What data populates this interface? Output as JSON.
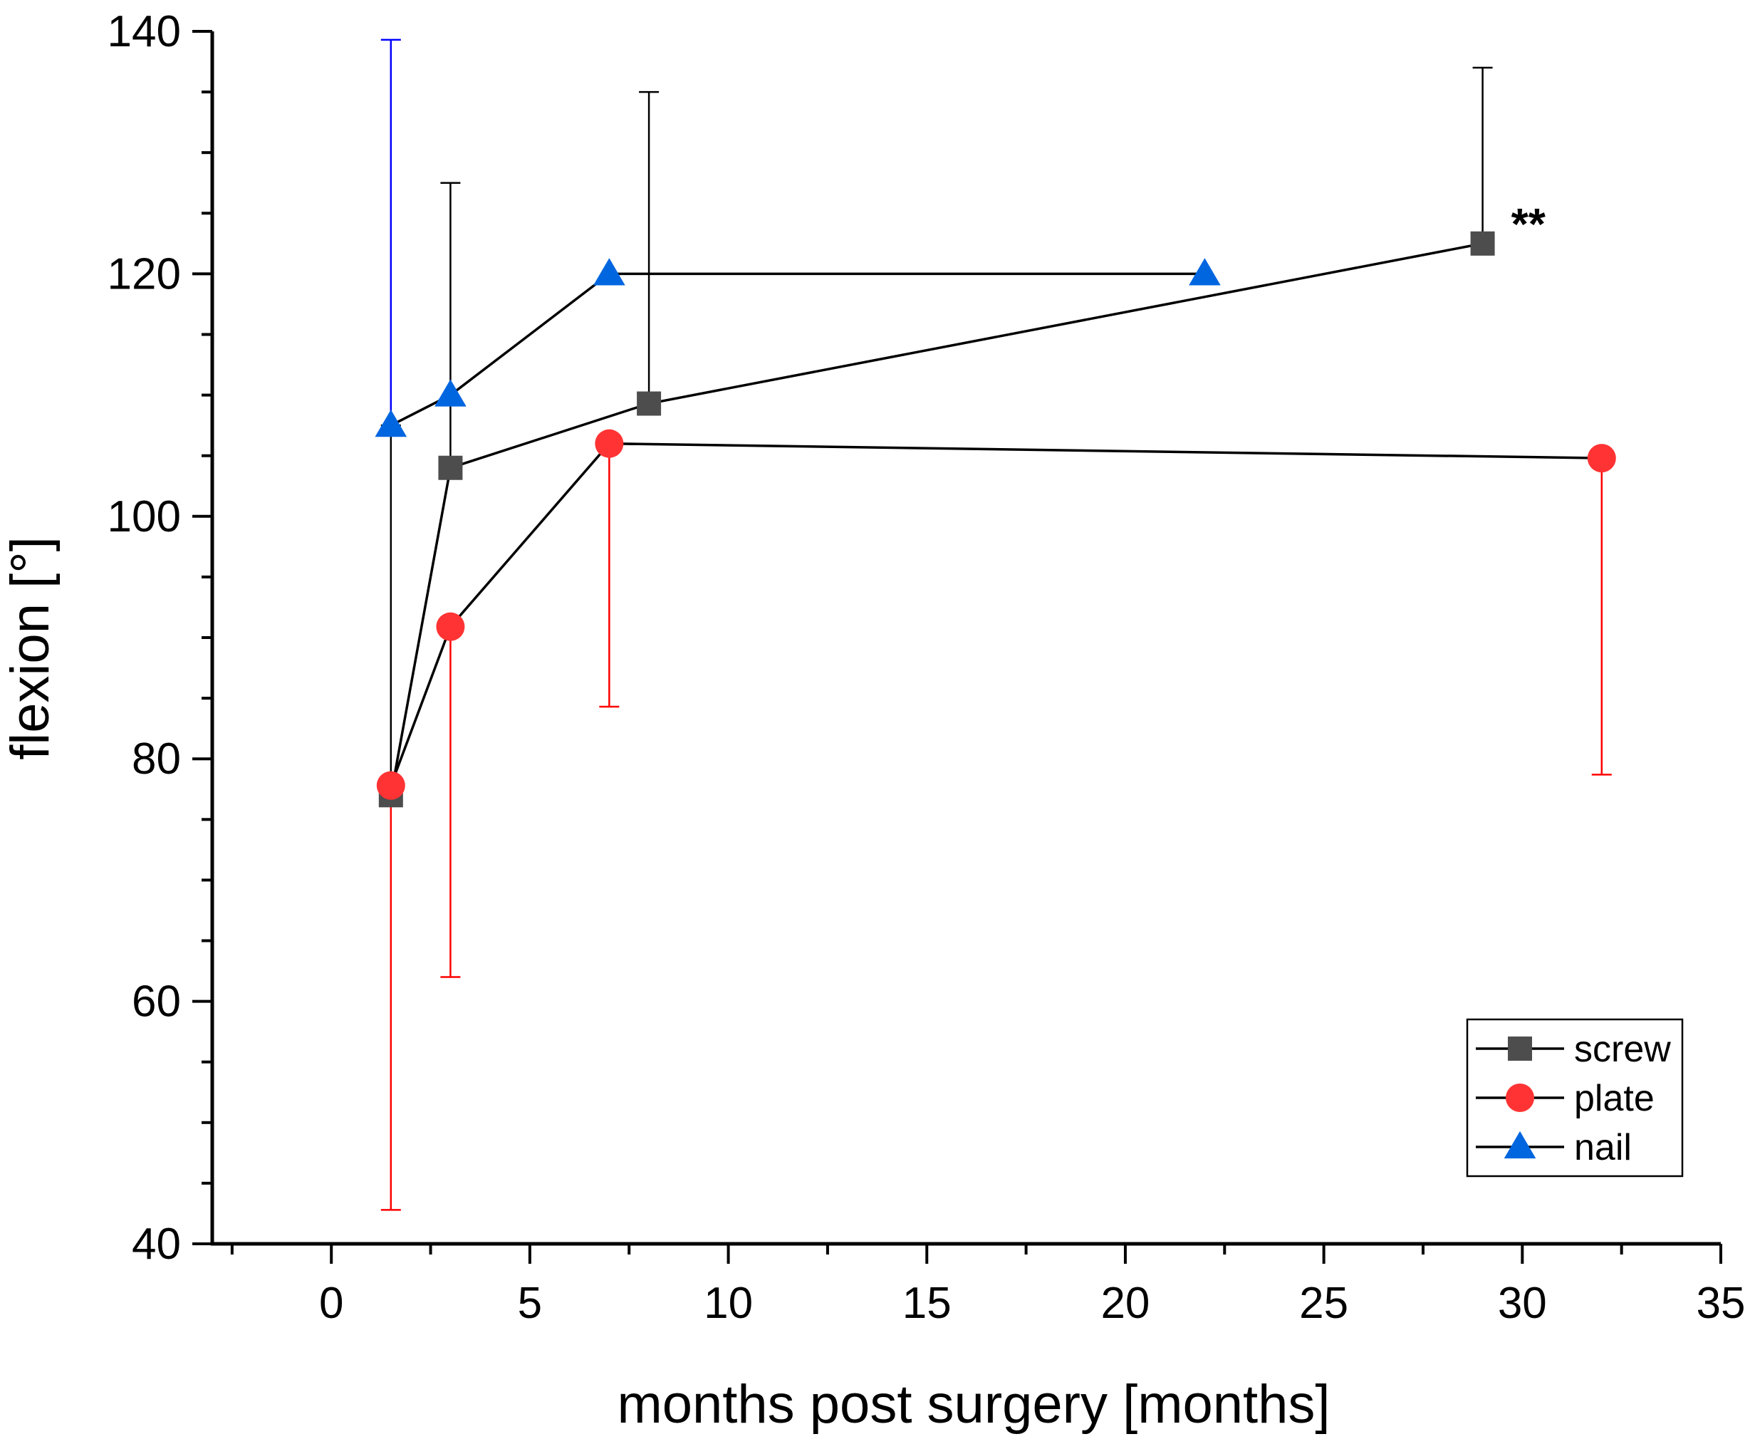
{
  "chart_data": {
    "type": "line",
    "title": "",
    "xlabel": "months post surgery [months]",
    "ylabel": "flexion [°]",
    "xlim": [
      -3,
      35
    ],
    "ylim": [
      40,
      140
    ],
    "xticks": [
      0,
      5,
      10,
      15,
      20,
      25,
      30,
      35
    ],
    "yticks": [
      40,
      60,
      80,
      100,
      120,
      140
    ],
    "x_minor_step": 2.5,
    "y_minor_step": 5,
    "grid": false,
    "legend_position": "bottom-right",
    "series": [
      {
        "name": "screw",
        "marker": "square",
        "color": "#4d4d4d",
        "errorbar_color": "#000000",
        "line_color": "#000000",
        "points": [
          {
            "x": 1.5,
            "y": 77,
            "err_high": 107.5
          },
          {
            "x": 3,
            "y": 104,
            "err_high": 127.5
          },
          {
            "x": 8,
            "y": 109.3,
            "err_high": 135
          },
          {
            "x": 29,
            "y": 122.5,
            "err_high": 137
          }
        ]
      },
      {
        "name": "plate",
        "marker": "circle",
        "color": "#ff3333",
        "errorbar_color": "#ff0000",
        "line_color": "#000000",
        "points": [
          {
            "x": 1.5,
            "y": 77.8,
            "err_low": 42.8
          },
          {
            "x": 3,
            "y": 90.9,
            "err_low": 62
          },
          {
            "x": 7,
            "y": 106,
            "err_low": 84.3
          },
          {
            "x": 32,
            "y": 104.8,
            "err_low": 78.7
          }
        ]
      },
      {
        "name": "nail",
        "marker": "triangle",
        "color": "#0066e0",
        "errorbar_color": "#0000ff",
        "line_color": "#000000",
        "points": [
          {
            "x": 1.5,
            "y": 107.5,
            "err_high": 139.3
          },
          {
            "x": 3,
            "y": 110,
            "err_high": null
          },
          {
            "x": 7,
            "y": 120,
            "err_high": null
          },
          {
            "x": 22,
            "y": 120,
            "err_high": null
          }
        ]
      }
    ],
    "annotations": [
      {
        "text": "**",
        "x": 29,
        "y": 122.5
      }
    ]
  }
}
